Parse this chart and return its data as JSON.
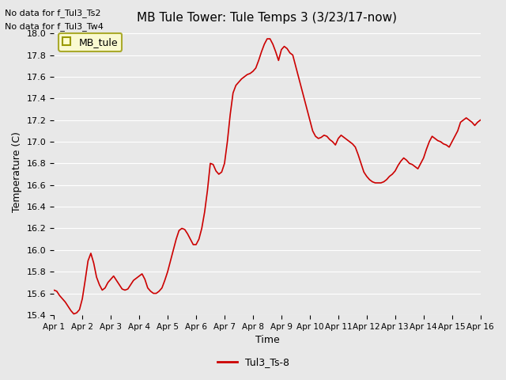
{
  "title": "MB Tule Tower: Tule Temps 3 (3/23/17-now)",
  "xlabel": "Time",
  "ylabel": "Temperature (C)",
  "no_data_text": [
    "No data for f_Tul3_Ts2",
    "No data for f_Tul3_Tw4"
  ],
  "legend_box_label": "MB_tule",
  "legend_line_label": "Tul3_Ts-8",
  "line_color": "#cc0000",
  "legend_box_facecolor": "#ffffcc",
  "legend_box_edgecolor": "#999900",
  "background_color": "#e8e8e8",
  "plot_bg_color": "#e8e8e8",
  "ylim": [
    15.4,
    18.05
  ],
  "yticks": [
    15.4,
    15.6,
    15.8,
    16.0,
    16.2,
    16.4,
    16.6,
    16.8,
    17.0,
    17.2,
    17.4,
    17.6,
    17.8,
    18.0
  ],
  "x_days": [
    1,
    2,
    3,
    4,
    5,
    6,
    7,
    8,
    9,
    10,
    11,
    12,
    13,
    14,
    15,
    16
  ],
  "x_labels": [
    "Apr 1",
    "Apr 2",
    "Apr 3",
    "Apr 4",
    "Apr 5",
    "Apr 6",
    "Apr 7",
    "Apr 8",
    "Apr 9",
    "Apr 10",
    "Apr 11",
    "Apr 12",
    "Apr 13",
    "Apr 14",
    "Apr 15",
    "Apr 16"
  ],
  "data_x": [
    1.0,
    1.1,
    1.2,
    1.3,
    1.4,
    1.5,
    1.6,
    1.7,
    1.8,
    1.9,
    2.0,
    2.1,
    2.2,
    2.3,
    2.4,
    2.5,
    2.6,
    2.7,
    2.8,
    2.9,
    3.0,
    3.1,
    3.2,
    3.3,
    3.4,
    3.5,
    3.6,
    3.7,
    3.8,
    3.9,
    4.0,
    4.1,
    4.2,
    4.3,
    4.4,
    4.5,
    4.6,
    4.7,
    4.8,
    4.9,
    5.0,
    5.1,
    5.2,
    5.3,
    5.4,
    5.5,
    5.6,
    5.7,
    5.8,
    5.9,
    6.0,
    6.1,
    6.2,
    6.3,
    6.4,
    6.5,
    6.6,
    6.7,
    6.8,
    6.9,
    7.0,
    7.1,
    7.2,
    7.3,
    7.4,
    7.5,
    7.6,
    7.7,
    7.8,
    7.9,
    8.0,
    8.1,
    8.2,
    8.3,
    8.4,
    8.5,
    8.6,
    8.7,
    8.8,
    8.9,
    9.0,
    9.1,
    9.2,
    9.3,
    9.4,
    9.5,
    9.6,
    9.7,
    9.8,
    9.9,
    10.0,
    10.1,
    10.2,
    10.3,
    10.4,
    10.5,
    10.6,
    10.7,
    10.8,
    10.9,
    11.0,
    11.1,
    11.2,
    11.3,
    11.4,
    11.5,
    11.6,
    11.7,
    11.8,
    11.9,
    12.0,
    12.1,
    12.2,
    12.3,
    12.4,
    12.5,
    12.6,
    12.7,
    12.8,
    12.9,
    13.0,
    13.1,
    13.2,
    13.3,
    13.4,
    13.5,
    13.6,
    13.7,
    13.8,
    13.9,
    14.0,
    14.1,
    14.2,
    14.3,
    14.4,
    14.5,
    14.6,
    14.7,
    14.8,
    14.9,
    15.0,
    15.1,
    15.2,
    15.3,
    15.4,
    15.5,
    15.6,
    15.7,
    15.8,
    15.9,
    16.0
  ],
  "data_y": [
    15.63,
    15.62,
    15.58,
    15.55,
    15.52,
    15.48,
    15.44,
    15.41,
    15.42,
    15.45,
    15.55,
    15.72,
    15.9,
    15.97,
    15.88,
    15.75,
    15.68,
    15.63,
    15.65,
    15.7,
    15.73,
    15.76,
    15.72,
    15.68,
    15.64,
    15.63,
    15.64,
    15.68,
    15.72,
    15.74,
    15.76,
    15.78,
    15.73,
    15.65,
    15.62,
    15.6,
    15.6,
    15.62,
    15.65,
    15.72,
    15.8,
    15.9,
    16.0,
    16.1,
    16.18,
    16.2,
    16.19,
    16.15,
    16.1,
    16.05,
    16.05,
    16.1,
    16.2,
    16.35,
    16.55,
    16.8,
    16.79,
    16.73,
    16.7,
    16.72,
    16.8,
    17.0,
    17.25,
    17.45,
    17.52,
    17.55,
    17.58,
    17.6,
    17.62,
    17.63,
    17.65,
    17.68,
    17.75,
    17.83,
    17.9,
    17.95,
    17.95,
    17.9,
    17.83,
    17.75,
    17.85,
    17.88,
    17.86,
    17.82,
    17.8,
    17.7,
    17.6,
    17.5,
    17.4,
    17.3,
    17.2,
    17.1,
    17.05,
    17.03,
    17.04,
    17.06,
    17.05,
    17.02,
    17.0,
    16.97,
    17.03,
    17.06,
    17.04,
    17.02,
    17.0,
    16.98,
    16.95,
    16.88,
    16.8,
    16.72,
    16.68,
    16.65,
    16.63,
    16.62,
    16.62,
    16.62,
    16.63,
    16.65,
    16.68,
    16.7,
    16.73,
    16.78,
    16.82,
    16.85,
    16.83,
    16.8,
    16.79,
    16.77,
    16.75,
    16.8,
    16.85,
    16.93,
    17.0,
    17.05,
    17.03,
    17.01,
    17.0,
    16.98,
    16.97,
    16.95,
    17.0,
    17.05,
    17.1,
    17.18,
    17.2,
    17.22,
    17.2,
    17.18,
    17.15,
    17.18,
    17.2
  ]
}
